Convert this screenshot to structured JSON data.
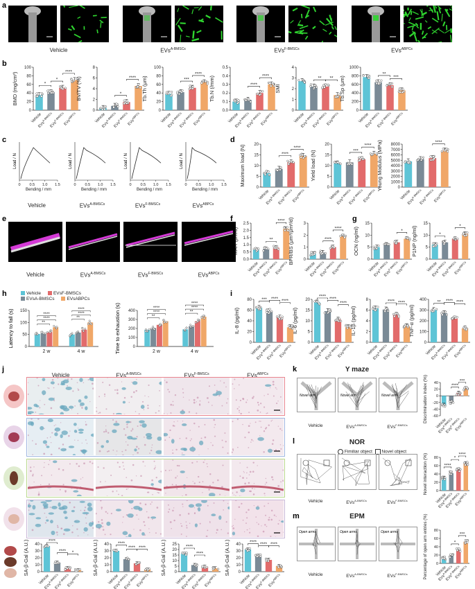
{
  "panel_labels": [
    "a",
    "b",
    "c",
    "d",
    "e",
    "f",
    "g",
    "h",
    "i",
    "j",
    "k",
    "l",
    "m"
  ],
  "groups": [
    "Vehicle",
    "EVsA-BMSCs",
    "EVsF-BMSCs",
    "EVsABPCs"
  ],
  "group_display": {
    "vehicle": "Vehicle",
    "a_bmsc": {
      "base": "EVs",
      "sup": "A-BMSCs"
    },
    "f_bmsc": {
      "base": "EVs",
      "sup": "F-BMSCs"
    },
    "abpc": {
      "base": "EVs",
      "sup": "ABPCs"
    }
  },
  "colors": {
    "vehicle": "#5ec4d6",
    "a_bmsc": "#7a8a96",
    "f_bmsc": "#e26b6b",
    "abpc": "#f0a768",
    "green": "#2fd52f",
    "magenta": "#d43ad6"
  },
  "panel_b": [
    {
      "ylabel": "BMD (mg/cm³)",
      "yticks": [
        "0",
        "20",
        "40",
        "60",
        "80",
        "100"
      ],
      "ymax": 100,
      "values": [
        35,
        42,
        52,
        70
      ],
      "sig": [
        "*",
        "*",
        "****"
      ]
    },
    {
      "ylabel": "BV/TV (%)",
      "yticks": [
        "0",
        "2",
        "4",
        "6",
        "8"
      ],
      "ymax": 8,
      "values": [
        0.4,
        0.8,
        1.5,
        4.5
      ],
      "sig": [
        "*",
        "****"
      ]
    },
    {
      "ylabel": "Tb.Th (μm)",
      "yticks": [
        "0",
        "20",
        "40",
        "60",
        "80",
        "100"
      ],
      "ymax": 100,
      "values": [
        38,
        42,
        52,
        65
      ],
      "sig": [
        "***",
        "****"
      ]
    },
    {
      "ylabel": "Tb.N (/mm)",
      "yticks": [
        "0.0",
        "0.1",
        "0.2",
        "0.3",
        "0.4",
        "0.5"
      ],
      "ymax": 0.5,
      "values": [
        0.1,
        0.12,
        0.2,
        0.3
      ],
      "sig": [
        "****",
        "****"
      ]
    },
    {
      "ylabel": "SMI",
      "yticks": [
        "0",
        "1",
        "2",
        "3",
        "4"
      ],
      "ymax": 4,
      "values": [
        2.7,
        2.2,
        2.2,
        1.4
      ],
      "sig": [
        "**",
        "**"
      ]
    },
    {
      "ylabel": "Tb.Sp (μm)",
      "yticks": [
        "0",
        "200",
        "400",
        "600",
        "800",
        "1000"
      ],
      "ymax": 1000,
      "values": [
        770,
        650,
        580,
        460
      ],
      "sig": [
        "**",
        "***"
      ]
    }
  ],
  "panel_c": {
    "xlabel": "Bending / mm",
    "ylabel": "Load / N",
    "xticks": [
      "0",
      "0.5",
      "1.0",
      "1.5"
    ]
  },
  "panel_d": [
    {
      "ylabel": "Maximum load (N)",
      "yticks": [
        "0",
        "5",
        "10",
        "15",
        "20"
      ],
      "ymax": 20,
      "values": [
        6.5,
        8.5,
        11.5,
        14.5
      ],
      "sig": [
        "****",
        "****"
      ]
    },
    {
      "ylabel": "Yield load  (N)",
      "yticks": [
        "0",
        "5",
        "10",
        "15",
        "20"
      ],
      "ymax": 20,
      "values": [
        11,
        11.5,
        13,
        15.5
      ],
      "sig": [
        "***",
        "****"
      ]
    },
    {
      "ylabel": "Young Modulus (MPa)",
      "yticks": [
        "0",
        "1000",
        "2000",
        "3000",
        "4000",
        "5000",
        "6000",
        "7000",
        "8000"
      ],
      "ymax": 8000,
      "values": [
        4800,
        5200,
        5400,
        6800
      ],
      "sig": [
        "****"
      ]
    }
  ],
  "panel_f": [
    {
      "ylabel": "MAR (μm/d)",
      "yticks": [
        "0.0",
        "0.5",
        "1.0",
        "1.5",
        "2.0",
        "2.5"
      ],
      "ymax": 2.5,
      "values": [
        0.65,
        0.7,
        0.8,
        2.1
      ],
      "sig": [
        "**",
        "****"
      ]
    },
    {
      "ylabel": "BFR/BS (μm³/μm²/d)",
      "yticks": [
        "0",
        "1",
        "2",
        "3"
      ],
      "ymax": 3,
      "values": [
        0.45,
        0.55,
        1.0,
        1.9
      ],
      "sig": [
        "****",
        "****"
      ]
    }
  ],
  "panel_g": [
    {
      "ylabel": "OCN (ng/ml)",
      "yticks": [
        "0",
        "5",
        "10",
        "15"
      ],
      "ymax": 15,
      "values": [
        5,
        6,
        7,
        8.5
      ],
      "sig": [
        "*"
      ]
    },
    {
      "ylabel": "P1NP (ng/ml)",
      "yticks": [
        "0",
        "5",
        "10",
        "15"
      ],
      "ymax": 15,
      "values": [
        6,
        7,
        8.5,
        10.5
      ],
      "sig": [
        "*",
        "*"
      ]
    }
  ],
  "panel_h": {
    "legend": [
      "Vehicle",
      "EVsF-BMSCs",
      "EVsA-BMSCs",
      "EVsABPCs"
    ],
    "left": {
      "ylabel": "Latency to fall (s)",
      "yticks": [
        "0",
        "50",
        "100",
        "150"
      ],
      "ymax": 150,
      "xcats": [
        "2 w",
        "4 w"
      ],
      "values": [
        [
          52,
          55,
          60,
          80
        ],
        [
          50,
          58,
          70,
          100
        ]
      ]
    },
    "right": {
      "ylabel": "Time to exhaustion (s)",
      "yticks": [
        "0",
        "100",
        "200",
        "300",
        "400"
      ],
      "ymax": 400,
      "xcats": [
        "2 w",
        "4 w"
      ],
      "values": [
        [
          185,
          205,
          240,
          280
        ],
        [
          190,
          225,
          280,
          330
        ]
      ]
    }
  },
  "panel_i": [
    {
      "ylabel": "IL-8 (pg/ml)",
      "yticks": [
        "0",
        "20",
        "40",
        "60",
        "80"
      ],
      "ymax": 80,
      "values": [
        64,
        58,
        46,
        28
      ],
      "sig": [
        "***",
        "****",
        "****"
      ]
    },
    {
      "ylabel": "IL-6 (pg/ml)",
      "yticks": [
        "0",
        "5",
        "10",
        "15",
        "20"
      ],
      "ymax": 20,
      "values": [
        18.5,
        14.5,
        10.5,
        7
      ],
      "sig": [
        "****",
        "****",
        "****"
      ]
    },
    {
      "ylabel": "IL-1β (pg/ml)",
      "yticks": [
        "0",
        "2",
        "4",
        "6",
        "8"
      ],
      "ymax": 8,
      "values": [
        6.3,
        6.1,
        5.1,
        3
      ],
      "sig": [
        "****",
        "****"
      ]
    },
    {
      "ylabel": "TNF-α (pg/ml)",
      "yticks": [
        "0",
        "100",
        "200",
        "300",
        "400"
      ],
      "ymax": 400,
      "values": [
        300,
        270,
        220,
        130
      ],
      "sig": [
        "**",
        "****",
        "****"
      ]
    }
  ],
  "panel_j_bars": [
    {
      "ylabel": "SA-β-Gal (A.U.)",
      "yticks": [
        "0",
        "10",
        "20",
        "30",
        "40"
      ],
      "ymax": 40,
      "values": [
        37,
        13,
        5,
        2
      ],
      "sig": [
        "****",
        "****",
        "*"
      ]
    },
    {
      "ylabel": "SA-β-Gal (A.U.)",
      "yticks": [
        "0",
        "10",
        "20",
        "30",
        "40"
      ],
      "ymax": 40,
      "values": [
        30,
        18,
        12,
        3
      ],
      "sig": [
        "****",
        "****",
        "****"
      ]
    },
    {
      "ylabel": "SA-β-Gal (A.U.)",
      "yticks": [
        "0",
        "5",
        "10",
        "15",
        "20",
        "25"
      ],
      "ymax": 25,
      "values": [
        16,
        6,
        4.5,
        3
      ],
      "sig": [
        "****",
        "****"
      ]
    },
    {
      "ylabel": "SA-β-Gal (A.U.)",
      "yticks": [
        "0",
        "10",
        "20",
        "30",
        "40"
      ],
      "ymax": 40,
      "values": [
        32,
        23,
        17,
        8
      ],
      "sig": [
        "****",
        "****",
        "****"
      ]
    }
  ],
  "panel_k": {
    "title": "Y maze",
    "arm_label": "Novel arm",
    "ylabel": "Discrimination index (%)",
    "yticks": [
      "-60",
      "-40",
      "-20",
      "0",
      "20",
      "40"
    ],
    "ymin": -60,
    "ymax": 40,
    "values": [
      -28,
      -20,
      8,
      22
    ],
    "sig": [
      "****",
      "***"
    ]
  },
  "panel_l": {
    "title": "NOR",
    "legend_familiar": "Fimiliar object",
    "legend_novel": "Novel object",
    "ylabel": "Novel interaction (%)",
    "yticks": [
      "0",
      "20",
      "40",
      "60",
      "80"
    ],
    "ymax": 80,
    "values": [
      30,
      42,
      50,
      65
    ],
    "sig": [
      "****",
      "*",
      "****"
    ]
  },
  "panel_m": {
    "title": "EPM",
    "open_arms": "Open arms",
    "ylabel": "Percentage of open arm entries (%)",
    "yticks": [
      "0",
      "20",
      "40",
      "60",
      "80"
    ],
    "ymax": 80,
    "values": [
      12,
      18,
      32,
      52
    ],
    "sig": [
      "*",
      "***"
    ]
  }
}
